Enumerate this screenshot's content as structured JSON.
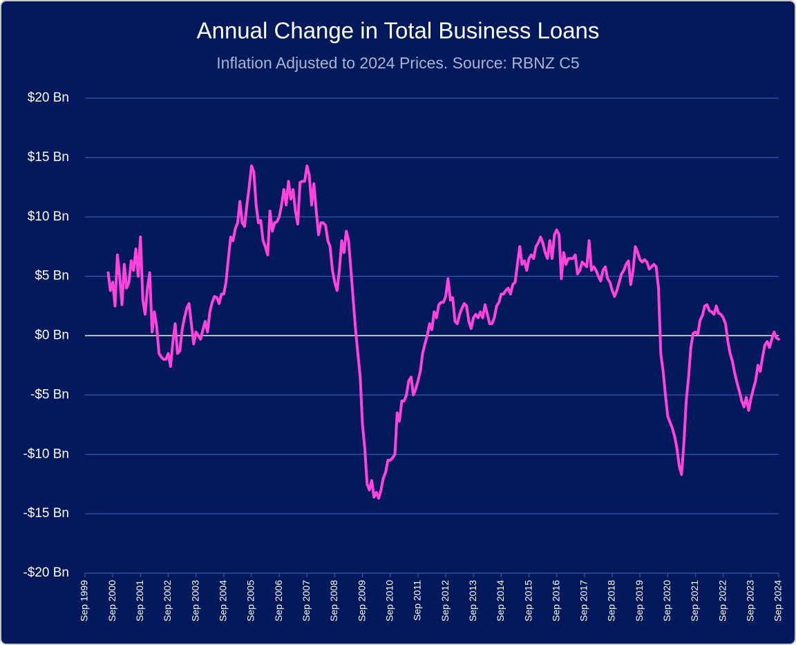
{
  "chart_data": {
    "type": "line",
    "title": "Annual Change in Total Business Loans",
    "subtitle": "Inflation Adjusted to 2024 Prices. Source: RBNZ C5",
    "x": [
      "Jul 2000",
      "Aug 2000",
      "Sep 2000",
      "Oct 2000",
      "Nov 2000",
      "Dec 2000",
      "Jan 2001",
      "Feb 2001",
      "Mar 2001",
      "Apr 2001",
      "May 2001",
      "Jun 2001",
      "Jul 2001",
      "Aug 2001",
      "Sep 2001",
      "Oct 2001",
      "Nov 2001",
      "Dec 2001",
      "Jan 2002",
      "Feb 2002",
      "Mar 2002",
      "Apr 2002",
      "May 2002",
      "Jun 2002",
      "Jul 2002",
      "Aug 2002",
      "Sep 2002",
      "Oct 2002",
      "Nov 2002",
      "Dec 2002",
      "Jan 2003",
      "Feb 2003",
      "Mar 2003",
      "Apr 2003",
      "May 2003",
      "Jun 2003",
      "Jul 2003",
      "Aug 2003",
      "Sep 2003",
      "Oct 2003",
      "Nov 2003",
      "Dec 2003",
      "Jan 2004",
      "Feb 2004",
      "Mar 2004",
      "Apr 2004",
      "May 2004",
      "Jun 2004",
      "Jul 2004",
      "Aug 2004",
      "Sep 2004",
      "Oct 2004",
      "Nov 2004",
      "Dec 2004",
      "Jan 2005",
      "Feb 2005",
      "Mar 2005",
      "Apr 2005",
      "May 2005",
      "Jun 2005",
      "Jul 2005",
      "Aug 2005",
      "Sep 2005",
      "Oct 2005",
      "Nov 2005",
      "Dec 2005",
      "Jan 2006",
      "Feb 2006",
      "Mar 2006",
      "Apr 2006",
      "May 2006",
      "Jun 2006",
      "Jul 2006",
      "Aug 2006",
      "Sep 2006",
      "Oct 2006",
      "Nov 2006",
      "Dec 2006",
      "Jan 2007",
      "Feb 2007",
      "Mar 2007",
      "Apr 2007",
      "May 2007",
      "Jun 2007",
      "Jul 2007",
      "Aug 2007",
      "Sep 2007",
      "Oct 2007",
      "Nov 2007",
      "Dec 2007",
      "Jan 2008",
      "Feb 2008",
      "Mar 2008",
      "Apr 2008",
      "May 2008",
      "Jun 2008",
      "Jul 2008",
      "Aug 2008",
      "Sep 2008",
      "Oct 2008",
      "Nov 2008",
      "Dec 2008",
      "Jan 2009",
      "Feb 2009",
      "Mar 2009",
      "Apr 2009",
      "May 2009",
      "Jun 2009",
      "Jul 2009",
      "Aug 2009",
      "Sep 2009",
      "Oct 2009",
      "Nov 2009",
      "Dec 2009",
      "Jan 2010",
      "Feb 2010",
      "Mar 2010",
      "Apr 2010",
      "May 2010",
      "Jun 2010",
      "Jul 2010",
      "Aug 2010",
      "Sep 2010",
      "Oct 2010",
      "Nov 2010",
      "Dec 2010",
      "Jan 2011",
      "Feb 2011",
      "Mar 2011",
      "Apr 2011",
      "May 2011",
      "Jun 2011",
      "Jul 2011",
      "Aug 2011",
      "Sep 2011",
      "Oct 2011",
      "Nov 2011",
      "Dec 2011",
      "Jan 2012",
      "Feb 2012",
      "Mar 2012",
      "Apr 2012",
      "May 2012",
      "Jun 2012",
      "Jul 2012",
      "Aug 2012",
      "Sep 2012",
      "Oct 2012",
      "Nov 2012",
      "Dec 2012",
      "Jan 2013",
      "Feb 2013",
      "Mar 2013",
      "Apr 2013",
      "May 2013",
      "Jun 2013",
      "Jul 2013",
      "Aug 2013",
      "Sep 2013",
      "Oct 2013",
      "Nov 2013",
      "Dec 2013",
      "Jan 2014",
      "Feb 2014",
      "Mar 2014",
      "Apr 2014",
      "May 2014",
      "Jun 2014",
      "Jul 2014",
      "Aug 2014",
      "Sep 2014",
      "Oct 2014",
      "Nov 2014",
      "Dec 2014",
      "Jan 2015",
      "Feb 2015",
      "Mar 2015",
      "Apr 2015",
      "May 2015",
      "Jun 2015",
      "Jul 2015",
      "Aug 2015",
      "Sep 2015",
      "Oct 2015",
      "Nov 2015",
      "Dec 2015",
      "Jan 2016",
      "Feb 2016",
      "Mar 2016",
      "Apr 2016",
      "May 2016",
      "Jun 2016",
      "Jul 2016",
      "Aug 2016",
      "Sep 2016",
      "Oct 2016",
      "Nov 2016",
      "Dec 2016",
      "Jan 2017",
      "Feb 2017",
      "Mar 2017",
      "Apr 2017",
      "May 2017",
      "Jun 2017",
      "Jul 2017",
      "Aug 2017",
      "Sep 2017",
      "Oct 2017",
      "Nov 2017",
      "Dec 2017",
      "Jan 2018",
      "Feb 2018",
      "Mar 2018",
      "Apr 2018",
      "May 2018",
      "Jun 2018",
      "Jul 2018",
      "Aug 2018",
      "Sep 2018",
      "Oct 2018",
      "Nov 2018",
      "Dec 2018",
      "Jan 2019",
      "Feb 2019",
      "Mar 2019",
      "Apr 2019",
      "May 2019",
      "Jun 2019",
      "Jul 2019",
      "Aug 2019",
      "Sep 2019",
      "Oct 2019",
      "Nov 2019",
      "Dec 2019",
      "Jan 2020",
      "Feb 2020",
      "Mar 2020",
      "Apr 2020",
      "May 2020",
      "Jun 2020",
      "Jul 2020",
      "Aug 2020",
      "Sep 2020",
      "Oct 2020",
      "Nov 2020",
      "Dec 2020",
      "Jan 2021",
      "Feb 2021",
      "Mar 2021",
      "Apr 2021",
      "May 2021",
      "Jun 2021",
      "Jul 2021",
      "Aug 2021",
      "Sep 2021",
      "Oct 2021",
      "Nov 2021",
      "Dec 2021",
      "Jan 2022",
      "Feb 2022",
      "Mar 2022",
      "Apr 2022",
      "May 2022",
      "Jun 2022",
      "Jul 2022",
      "Aug 2022",
      "Sep 2022",
      "Oct 2022",
      "Nov 2022",
      "Dec 2022",
      "Jan 2023",
      "Feb 2023",
      "Mar 2023",
      "Apr 2023",
      "May 2023",
      "Jun 2023",
      "Jul 2023",
      "Aug 2023",
      "Sep 2023",
      "Oct 2023",
      "Nov 2023",
      "Dec 2023",
      "Jan 2024",
      "Feb 2024",
      "Mar 2024",
      "Apr 2024",
      "May 2024",
      "Jun 2024",
      "Jul 2024",
      "Aug 2024",
      "Sep 2024"
    ],
    "series": [
      {
        "color": "#ff44dd",
        "values": [
          5.3,
          3.8,
          4.5,
          2.5,
          6.8,
          5.0,
          2.6,
          6.0,
          4.0,
          4.5,
          6.3,
          5.5,
          7.3,
          5.0,
          8.3,
          3.0,
          1.8,
          4.0,
          5.3,
          0.3,
          2.0,
          0.8,
          -1.5,
          -1.8,
          -2.0,
          -2.0,
          -1.5,
          -2.6,
          -0.5,
          1.0,
          -1.5,
          -1.3,
          0.5,
          1.5,
          2.3,
          2.7,
          1.0,
          -0.7,
          0.3,
          0.0,
          -0.3,
          0.5,
          1.2,
          0.3,
          2.0,
          2.8,
          3.3,
          3.2,
          2.7,
          3.5,
          3.5,
          4.5,
          6.5,
          8.3,
          8.0,
          9.0,
          9.5,
          11.3,
          9.5,
          9.2,
          11.0,
          12.5,
          14.3,
          13.8,
          11.0,
          9.5,
          9.7,
          8.0,
          7.5,
          6.8,
          10.5,
          8.8,
          9.5,
          9.6,
          10.0,
          11.0,
          12.3,
          11.0,
          13.0,
          11.5,
          12.3,
          10.5,
          9.4,
          12.9,
          13.0,
          13.0,
          14.3,
          13.5,
          11.0,
          12.8,
          10.5,
          8.5,
          9.5,
          9.5,
          9.3,
          8.0,
          7.5,
          5.5,
          4.5,
          3.8,
          5.5,
          8.0,
          7.0,
          8.8,
          8.0,
          5.5,
          3.0,
          0.5,
          -1.5,
          -3.5,
          -7.5,
          -9.5,
          -12.5,
          -13.0,
          -12.2,
          -13.6,
          -13.2,
          -13.7,
          -13.0,
          -12.0,
          -11.5,
          -10.5,
          -10.5,
          -10.3,
          -10.0,
          -6.5,
          -7.2,
          -5.5,
          -5.5,
          -5.0,
          -3.8,
          -3.5,
          -5.0,
          -4.5,
          -3.8,
          -3.0,
          -1.5,
          -0.7,
          0.0,
          1.0,
          0.5,
          2.0,
          1.5,
          2.6,
          2.8,
          2.8,
          3.3,
          4.8,
          3.0,
          3.2,
          1.2,
          1.0,
          1.8,
          2.3,
          2.7,
          2.5,
          1.2,
          0.6,
          1.5,
          1.8,
          1.5,
          2.0,
          1.5,
          2.6,
          1.8,
          1.0,
          1.0,
          1.5,
          2.5,
          2.8,
          3.5,
          3.5,
          3.8,
          4.0,
          3.5,
          4.3,
          4.5,
          6.0,
          7.5,
          6.0,
          6.3,
          5.5,
          6.5,
          6.8,
          6.5,
          7.5,
          7.8,
          8.3,
          7.8,
          7.0,
          6.5,
          8.0,
          6.5,
          8.5,
          8.9,
          8.5,
          4.8,
          7.0,
          6.0,
          6.5,
          6.5,
          6.5,
          6.8,
          5.2,
          5.5,
          6.2,
          6.0,
          5.8,
          8.0,
          5.5,
          5.8,
          5.5,
          5.0,
          4.6,
          5.5,
          5.8,
          4.8,
          4.5,
          3.8,
          3.3,
          3.8,
          4.5,
          5.2,
          5.5,
          6.0,
          6.3,
          4.3,
          5.5,
          7.5,
          7.0,
          6.4,
          6.2,
          6.4,
          6.2,
          5.6,
          5.8,
          6.0,
          5.8,
          4.0,
          -1.5,
          -3.0,
          -5.0,
          -6.8,
          -7.3,
          -7.8,
          -8.5,
          -9.5,
          -11.0,
          -11.7,
          -9.0,
          -5.5,
          -3.5,
          -1.0,
          0.2,
          0.3,
          0.1,
          1.3,
          1.7,
          2.5,
          2.6,
          2.1,
          2.0,
          1.8,
          2.5,
          1.9,
          1.8,
          1.5,
          1.0,
          -0.5,
          -1.5,
          -2.2,
          -3.2,
          -4.0,
          -4.7,
          -5.5,
          -6.0,
          -5.2,
          -6.3,
          -5.3,
          -4.5,
          -3.8,
          -2.5,
          -3.0,
          -1.8,
          -0.8,
          -0.5,
          -1.0,
          -0.3,
          0.3,
          -0.2,
          -0.3
        ]
      }
    ],
    "xlim": [
      "Sep 1999",
      "Sep 2024"
    ],
    "xticks": [
      "Sep 1999",
      "Sep 2000",
      "Sep 2001",
      "Sep 2002",
      "Sep 2003",
      "Sep 2004",
      "Sep 2005",
      "Sep 2006",
      "Sep 2007",
      "Sep 2008",
      "Sep 2009",
      "Sep 2010",
      "Sep 2011",
      "Sep 2012",
      "Sep 2013",
      "Sep 2014",
      "Sep 2015",
      "Sep 2016",
      "Sep 2017",
      "Sep 2018",
      "Sep 2019",
      "Sep 2020",
      "Sep 2021",
      "Sep 2022",
      "Sep 2023",
      "Sep 2024"
    ],
    "ylim": [
      -20,
      20
    ],
    "yticks": [
      {
        "value": -20,
        "label": "-$20 Bn"
      },
      {
        "value": -15,
        "label": "-$15 Bn"
      },
      {
        "value": -10,
        "label": "-$10 Bn"
      },
      {
        "value": -5,
        "label": "-$5 Bn"
      },
      {
        "value": 0,
        "label": "$0 Bn"
      },
      {
        "value": 5,
        "label": "$5 Bn"
      },
      {
        "value": 10,
        "label": "$10 Bn"
      },
      {
        "value": 15,
        "label": "$15 Bn"
      },
      {
        "value": 20,
        "label": "$20 Bn"
      }
    ],
    "grid": true
  }
}
